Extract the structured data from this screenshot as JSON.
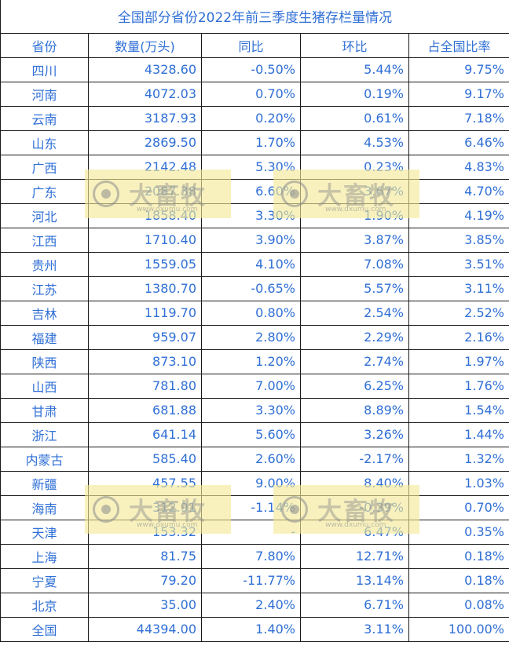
{
  "title": "全国部分省份2022年前三季度生猪存栏量情况",
  "headers": [
    "省份",
    "数量(万头)",
    "同比",
    "环比",
    "占全国比率"
  ],
  "rows": [
    [
      "四川",
      "4328.60",
      "-0.50%",
      "5.44%",
      "9.75%"
    ],
    [
      "河南",
      "4072.03",
      "0.70%",
      "0.19%",
      "9.17%"
    ],
    [
      "云南",
      "3187.93",
      "0.20%",
      "0.61%",
      "7.18%"
    ],
    [
      "山东",
      "2869.50",
      "1.70%",
      "4.53%",
      "6.46%"
    ],
    [
      "广西",
      "2142.48",
      "5.30%",
      "0.23%",
      "4.83%"
    ],
    [
      "广东",
      "2087.38",
      "6.60%",
      "3.67%",
      "4.70%"
    ],
    [
      "河北",
      "1858.40",
      "3.30%",
      "1.90%",
      "4.19%"
    ],
    [
      "江西",
      "1710.40",
      "3.90%",
      "3.87%",
      "3.85%"
    ],
    [
      "贵州",
      "1559.05",
      "4.10%",
      "7.08%",
      "3.51%"
    ],
    [
      "江苏",
      "1380.70",
      "-0.65%",
      "5.57%",
      "3.11%"
    ],
    [
      "吉林",
      "1119.70",
      "0.80%",
      "2.54%",
      "2.52%"
    ],
    [
      "福建",
      "959.07",
      "2.80%",
      "2.29%",
      "2.16%"
    ],
    [
      "陕西",
      "873.10",
      "1.20%",
      "2.74%",
      "1.97%"
    ],
    [
      "山西",
      "781.80",
      "7.00%",
      "6.25%",
      "1.76%"
    ],
    [
      "甘肃",
      "681.88",
      "3.30%",
      "8.89%",
      "1.54%"
    ],
    [
      "浙江",
      "641.14",
      "5.60%",
      "3.26%",
      "1.44%"
    ],
    [
      "内蒙古",
      "585.40",
      "2.60%",
      "-2.17%",
      "1.32%"
    ],
    [
      "新疆",
      "457.55",
      "9.00%",
      "8.40%",
      "1.03%"
    ],
    [
      "海南",
      "312.91",
      "-1.14%",
      "-0.39%",
      "0.70%"
    ],
    [
      "天津",
      "153.32",
      "-",
      "6.47%",
      "0.35%"
    ],
    [
      "上海",
      "81.75",
      "7.80%",
      "12.71%",
      "0.18%"
    ],
    [
      "宁夏",
      "79.20",
      "-11.77%",
      "13.14%",
      "0.18%"
    ],
    [
      "北京",
      "35.00",
      "2.40%",
      "6.71%",
      "0.08%"
    ],
    [
      "全国",
      "44394.00",
      "1.40%",
      "3.11%",
      "100.00%"
    ]
  ],
  "watermark": {
    "text": "大畜牧",
    "url": "www.dxumu.com",
    "icon": "dxumu-logo-icon",
    "color": "#f3e896"
  },
  "text_color": "#2f6fd6"
}
